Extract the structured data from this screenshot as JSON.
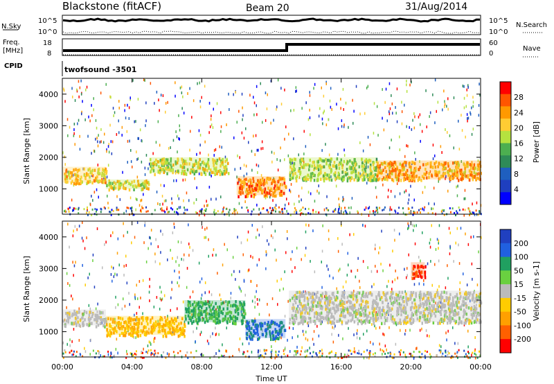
{
  "header": {
    "station": "Blackstone (fitACF)",
    "beam": "Beam 20",
    "date": "31/Aug/2014"
  },
  "top_panels": {
    "nsky_label": "N.Sky",
    "nsearch_label": "N.Search",
    "nsky_ticks": [
      "10^5",
      "10^0"
    ],
    "nsearch_ticks": [
      "10^5",
      "10^0"
    ],
    "freq_label_line1": "Freq.",
    "freq_label_line2": "[MHz]",
    "freq_ticks": [
      "18",
      "8"
    ],
    "nave_label": "Nave",
    "nave_ticks": [
      "60",
      "0"
    ],
    "cpid_label": "CPID",
    "cpid_text": "twofsound -3501"
  },
  "chart_data": [
    {
      "type": "heatmap",
      "panel": "power",
      "ylabel": "Slant Range [km]",
      "xlabel": "",
      "yticks": [
        "4000",
        "3000",
        "2000",
        "1000"
      ],
      "y_values": [
        4000,
        3000,
        2000,
        1000
      ],
      "ylim": [
        200,
        4500
      ],
      "colorbar_label": "Power [dB]",
      "colorbar_ticks": [
        "28",
        "24",
        "20",
        "16",
        "12",
        "8",
        "4"
      ],
      "colorbar_colors": [
        "#ff0000",
        "#ff5500",
        "#ff9900",
        "#ffcc33",
        "#b5e23f",
        "#4caf50",
        "#2e8b57",
        "#1f5fbf",
        "#1f3fbf",
        "#0000ff"
      ],
      "echo_bands": [
        {
          "t_start": 0.0,
          "t_end": 2.5,
          "r_start": 1200,
          "r_end": 1700,
          "power": 20
        },
        {
          "t_start": 2.5,
          "t_end": 5.0,
          "r_start": 1000,
          "r_end": 1300,
          "power": 18
        },
        {
          "t_start": 5.0,
          "t_end": 9.5,
          "r_start": 1500,
          "r_end": 2000,
          "power": 18
        },
        {
          "t_start": 10.0,
          "t_end": 12.8,
          "r_start": 800,
          "r_end": 1400,
          "power": 24
        },
        {
          "t_start": 13.0,
          "t_end": 18.0,
          "r_start": 1300,
          "r_end": 2000,
          "power": 16
        },
        {
          "t_start": 18.0,
          "t_end": 24.0,
          "r_start": 1300,
          "r_end": 1900,
          "power": 22
        }
      ]
    },
    {
      "type": "heatmap",
      "panel": "velocity",
      "ylabel": "Slant Range [km]",
      "xlabel": "Time UT",
      "yticks": [
        "4000",
        "3000",
        "2000",
        "1000"
      ],
      "y_values": [
        4000,
        3000,
        2000,
        1000
      ],
      "ylim": [
        200,
        4500
      ],
      "xticks": [
        "00:00",
        "04:00",
        "08:00",
        "12:00",
        "16:00",
        "20:00",
        "00:00"
      ],
      "x_values": [
        0,
        4,
        8,
        12,
        16,
        20,
        24
      ],
      "xlim": [
        0,
        24
      ],
      "colorbar_label": "Velocity [m s-1]",
      "colorbar_ticks": [
        "200",
        "100",
        "50",
        "15",
        "-15",
        "-50",
        "-100",
        "-200"
      ],
      "colorbar_colors": [
        "#2040c0",
        "#2060e0",
        "#20a060",
        "#6ad040",
        "#bbbbbb",
        "#ffcc00",
        "#ffa000",
        "#ff6000",
        "#ff0000"
      ],
      "echo_bands": [
        {
          "t_start": 0.0,
          "t_end": 2.5,
          "r_start": 1200,
          "r_end": 1700,
          "velocity": 0
        },
        {
          "t_start": 2.5,
          "t_end": 7.0,
          "r_start": 900,
          "r_end": 1500,
          "velocity": -50
        },
        {
          "t_start": 7.0,
          "t_end": 10.5,
          "r_start": 1300,
          "r_end": 2000,
          "velocity": 50
        },
        {
          "t_start": 10.5,
          "t_end": 12.8,
          "r_start": 800,
          "r_end": 1400,
          "velocity": 100
        },
        {
          "t_start": 13.0,
          "t_end": 24.0,
          "r_start": 1300,
          "r_end": 2300,
          "velocity": 0
        },
        {
          "t_start": 20.0,
          "t_end": 20.8,
          "r_start": 2700,
          "r_end": 3200,
          "velocity": -200
        }
      ]
    }
  ]
}
